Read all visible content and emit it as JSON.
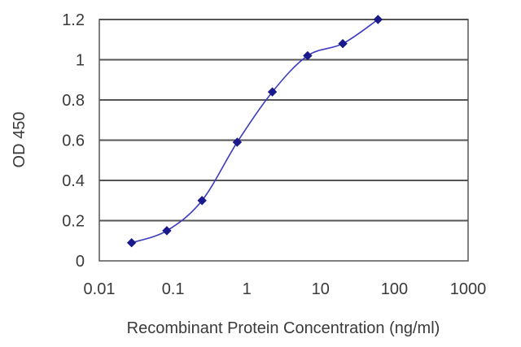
{
  "chart_data": {
    "type": "scatter",
    "title": "",
    "xlabel": "Recombinant Protein Concentration (ng/ml)",
    "ylabel": "OD 450",
    "x_scale": "log",
    "xlim": [
      0.01,
      1000
    ],
    "ylim": [
      0,
      1.2
    ],
    "x_ticks": [
      "0.01",
      "0.1",
      "1",
      "10",
      "100",
      "1000"
    ],
    "y_ticks": [
      "0",
      "0.2",
      "0.4",
      "0.6",
      "0.8",
      "1",
      "1.2"
    ],
    "grid": "horizontal",
    "legend": "none",
    "series": [
      {
        "x": [
          0.0274,
          0.0823,
          0.247,
          0.741,
          2.22,
          6.67,
          20,
          60
        ],
        "y": [
          0.09,
          0.15,
          0.3,
          0.59,
          0.84,
          1.02,
          1.08,
          1.2
        ],
        "color": "#1a1a8c",
        "line_color": "#3b3bbf",
        "marker": "diamond"
      }
    ]
  }
}
